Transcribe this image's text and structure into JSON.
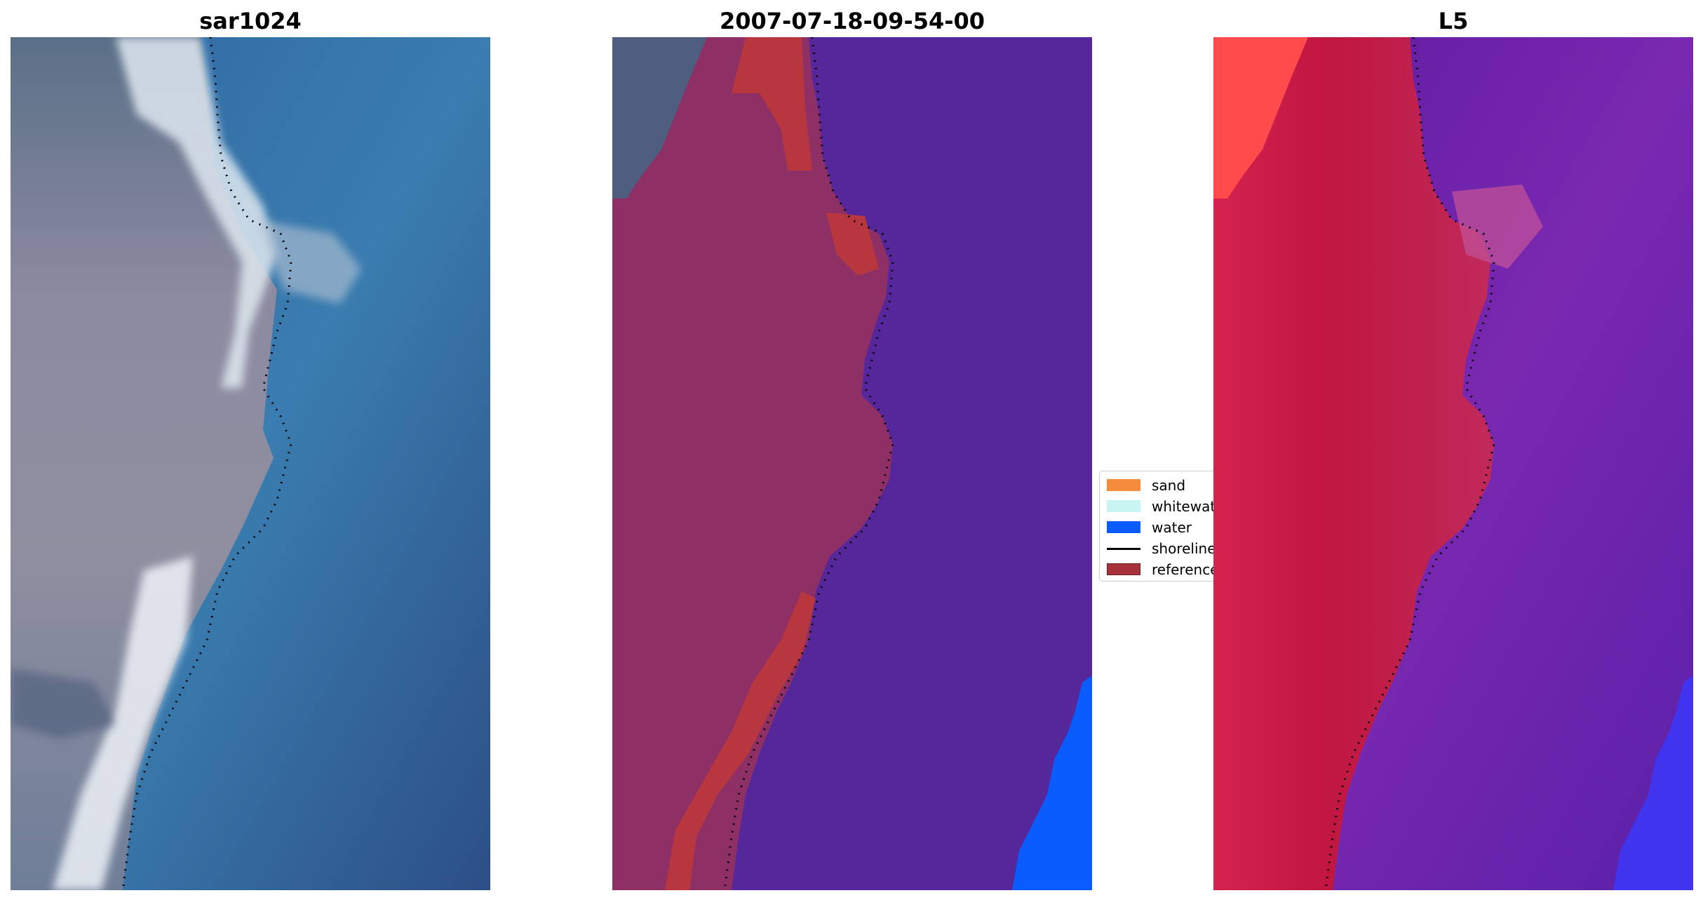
{
  "panels": [
    {
      "title": "sar1024"
    },
    {
      "title": "2007-07-18-09-54-00"
    },
    {
      "title": "L5"
    }
  ],
  "legend": {
    "items": [
      {
        "label": "sand",
        "color": "#f58b3c"
      },
      {
        "label": "whitewater",
        "color": "#c8f5f2"
      },
      {
        "label": "water",
        "color": "#0a5cff"
      },
      {
        "label": "shoreline",
        "color": "#000000"
      },
      {
        "label": "reference",
        "color": "#a5323a"
      }
    ]
  },
  "colors": {
    "satellite_water": "#2f6aa3",
    "satellite_land": "#8a8a9a",
    "satellite_surf": "#e6eef5",
    "class_land": "#8e2f66",
    "class_water": "#55279a",
    "class_reference": "#b8363e",
    "class_water_blue": "#0a5cff",
    "prob_land": "#c0163f",
    "prob_water": "#6a1fa4",
    "prob_sand_corner": "#ff4b4b",
    "prob_water_blue": "#3a3aff"
  }
}
